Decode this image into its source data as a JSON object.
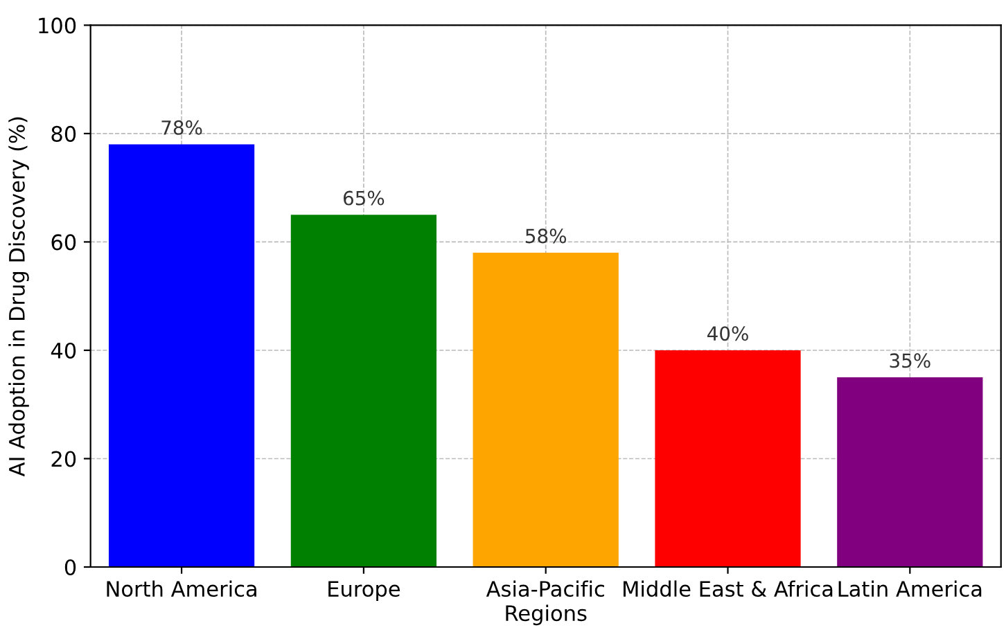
{
  "chart_data": {
    "type": "bar",
    "xlabel": "Regions",
    "ylabel": "AI Adoption in Drug Discovery (%)",
    "categories": [
      "North America",
      "Europe",
      "Asia-Pacific",
      "Middle East & Africa",
      "Latin America"
    ],
    "values": [
      78,
      65,
      58,
      40,
      35
    ],
    "colors": [
      "#0000ff",
      "#008000",
      "#ffa500",
      "#ff0000",
      "#800080"
    ],
    "value_labels": [
      "78%",
      "65%",
      "58%",
      "40%",
      "35%"
    ],
    "ylim": [
      0,
      100
    ],
    "yticks": [
      0,
      20,
      40,
      60,
      80,
      100
    ],
    "grid": true
  }
}
